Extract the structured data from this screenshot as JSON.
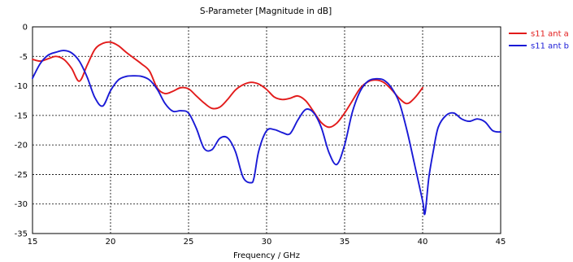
{
  "chart_data": {
    "type": "line",
    "title": "S-Parameter [Magnitude in dB]",
    "xlabel": "Frequency / GHz",
    "ylabel": "",
    "xlim": [
      15,
      45
    ],
    "ylim": [
      -35,
      0
    ],
    "xticks": [
      "15",
      "20",
      "25",
      "30",
      "35",
      "40",
      "45"
    ],
    "yticks": [
      "0",
      "-5",
      "-10",
      "-15",
      "-20",
      "-25",
      "-30",
      "-35"
    ],
    "grid": true,
    "legend_position": "top-right",
    "series": [
      {
        "name": "s11 ant a",
        "color": "#e21b1b",
        "x": [
          15,
          15.5,
          16,
          16.5,
          17,
          17.5,
          18,
          18.5,
          19,
          19.5,
          20,
          20.5,
          21,
          21.5,
          22,
          22.5,
          23,
          23.5,
          24,
          24.5,
          25,
          25.5,
          26,
          26.5,
          27,
          27.5,
          28,
          28.5,
          29,
          29.5,
          30,
          30.5,
          31,
          31.5,
          32,
          32.5,
          33,
          33.5,
          34,
          34.5,
          35,
          35.5,
          36,
          36.5,
          37,
          37.5,
          38,
          38.5,
          39,
          39.5,
          40
        ],
        "y": [
          -5.5,
          -5.8,
          -5.4,
          -5.0,
          -5.5,
          -7.0,
          -9.2,
          -6.5,
          -3.8,
          -2.8,
          -2.6,
          -3.2,
          -4.3,
          -5.3,
          -6.3,
          -7.5,
          -10.4,
          -11.3,
          -10.9,
          -10.3,
          -10.5,
          -11.7,
          -12.9,
          -13.8,
          -13.6,
          -12.3,
          -10.7,
          -9.8,
          -9.4,
          -9.7,
          -10.6,
          -11.9,
          -12.3,
          -12.1,
          -11.7,
          -12.5,
          -14.3,
          -16.2,
          -17.0,
          -16.3,
          -14.6,
          -12.5,
          -10.4,
          -9.3,
          -9.0,
          -9.4,
          -10.6,
          -12.1,
          -13.0,
          -12.0,
          -10.3
        ]
      },
      {
        "name": "s11 ant b",
        "color": "#1a1ad6",
        "x": [
          15,
          15.5,
          16,
          16.5,
          17,
          17.5,
          18,
          18.5,
          19,
          19.5,
          20,
          20.5,
          21,
          21.5,
          22,
          22.5,
          23,
          23.5,
          24,
          24.5,
          25,
          25.5,
          26,
          26.5,
          27,
          27.5,
          28,
          28.5,
          29,
          29.2,
          29.5,
          30,
          30.5,
          31,
          31.5,
          32,
          32.5,
          33,
          33.5,
          34,
          34.5,
          35,
          35.5,
          36,
          36.5,
          37,
          37.5,
          38,
          38.5,
          39,
          39.5,
          40,
          40.15,
          40.4,
          40.7,
          41,
          41.5,
          42,
          42.5,
          43,
          43.5,
          44,
          44.5,
          45
        ],
        "y": [
          -8.7,
          -6.2,
          -4.8,
          -4.3,
          -4.0,
          -4.4,
          -5.8,
          -8.5,
          -12.0,
          -13.4,
          -10.8,
          -9.0,
          -8.4,
          -8.3,
          -8.4,
          -9.0,
          -10.6,
          -13.0,
          -14.3,
          -14.2,
          -14.6,
          -17.2,
          -20.6,
          -20.8,
          -18.9,
          -18.8,
          -21.1,
          -25.5,
          -26.4,
          -25.5,
          -21.0,
          -17.6,
          -17.4,
          -17.9,
          -18.1,
          -15.8,
          -14.0,
          -14.5,
          -17.0,
          -21.3,
          -23.3,
          -20.0,
          -14.4,
          -10.9,
          -9.2,
          -8.8,
          -9.0,
          -10.3,
          -12.8,
          -17.6,
          -23.5,
          -29.5,
          -31.6,
          -25.5,
          -20.8,
          -17.0,
          -15.0,
          -14.6,
          -15.6,
          -16.0,
          -15.6,
          -16.1,
          -17.6,
          -17.8
        ]
      }
    ]
  }
}
